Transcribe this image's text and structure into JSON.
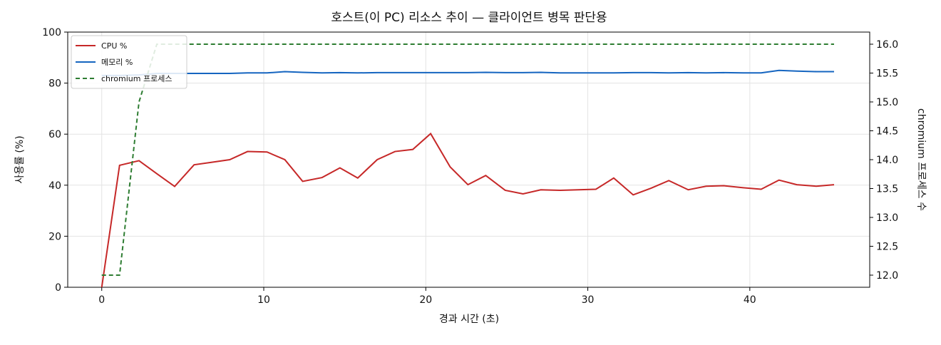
{
  "chart_data": {
    "type": "line",
    "title": "호스트(이 PC) 리소스 추이 — 클라이언트 병목 판단용",
    "x_label": "경과 시간 (초)",
    "y_label": "사용률 (%)",
    "y2_label": "chromium 프로세스 수",
    "x": [
      0,
      1.1,
      2.3,
      3.4,
      4.5,
      5.7,
      6.8,
      7.9,
      9.0,
      10.2,
      11.3,
      12.4,
      13.6,
      14.7,
      15.8,
      17.0,
      18.1,
      19.2,
      20.3,
      21.5,
      22.6,
      23.7,
      24.9,
      26.0,
      27.1,
      28.3,
      29.4,
      30.5,
      31.6,
      32.8,
      33.9,
      35.0,
      36.2,
      37.3,
      38.4,
      39.6,
      40.7,
      41.8,
      42.9,
      44.1,
      45.2
    ],
    "series": [
      {
        "name": "CPU %",
        "color": "#c62828",
        "dash": false,
        "values": [
          0,
          47.8,
          49.6,
          44.5,
          39.5,
          48,
          49,
          50,
          53.2,
          53,
          50,
          41.5,
          43,
          46.8,
          42.8,
          50,
          53.2,
          54,
          60.2,
          47.2,
          40.2,
          43.8,
          38,
          36.6,
          38.2,
          38,
          38.2,
          38.4,
          42.8,
          36.2,
          38.8,
          41.8,
          38.2,
          39.6,
          39.8,
          39,
          38.4,
          42,
          40.2,
          39.6,
          40.2
        ]
      },
      {
        "name": "메모리 %",
        "color": "#1565c0",
        "dash": false,
        "values": [
          83,
          83,
          83.2,
          83.8,
          83.8,
          83.8,
          83.8,
          83.8,
          84,
          84,
          84.5,
          84.2,
          84,
          84.1,
          84,
          84.1,
          84.1,
          84.1,
          84.1,
          84.1,
          84.1,
          84.2,
          84.1,
          84.1,
          84.2,
          84,
          84,
          84,
          84,
          84.1,
          84.1,
          84,
          84.1,
          84,
          84.1,
          84,
          84,
          85,
          84.7,
          84.5,
          84.5
        ]
      },
      {
        "name": "chromium 프로세스",
        "color": "#2e7d32",
        "dash": true,
        "axis": "y2",
        "values": [
          12,
          12,
          15,
          16,
          16,
          16,
          16,
          16,
          16,
          16,
          16,
          16,
          16,
          16,
          16,
          16,
          16,
          16,
          16,
          16,
          16,
          16,
          16,
          16,
          16,
          16,
          16,
          16,
          16,
          16,
          16,
          16,
          16,
          16,
          16,
          16,
          16,
          16,
          16,
          16,
          16
        ]
      }
    ],
    "xlim": [
      -2.1,
      47.4
    ],
    "xticks": [
      0,
      10,
      20,
      30,
      40
    ],
    "ylim": [
      0,
      100
    ],
    "yticks": [
      0,
      20,
      40,
      60,
      80,
      100
    ],
    "y2lim": [
      11.79,
      16.21
    ],
    "y2ticks": [
      {
        "value": 12,
        "label": "12.0"
      },
      {
        "value": 12.5,
        "label": "12.5"
      },
      {
        "value": 13,
        "label": "13.0"
      },
      {
        "value": 13.5,
        "label": "13.5"
      },
      {
        "value": 14,
        "label": "14.0"
      },
      {
        "value": 14.5,
        "label": "14.5"
      },
      {
        "value": 15,
        "label": "15.0"
      },
      {
        "value": 15.5,
        "label": "15.5"
      },
      {
        "value": 16,
        "label": "16.0"
      }
    ],
    "grid": true,
    "legend": "upper left"
  }
}
